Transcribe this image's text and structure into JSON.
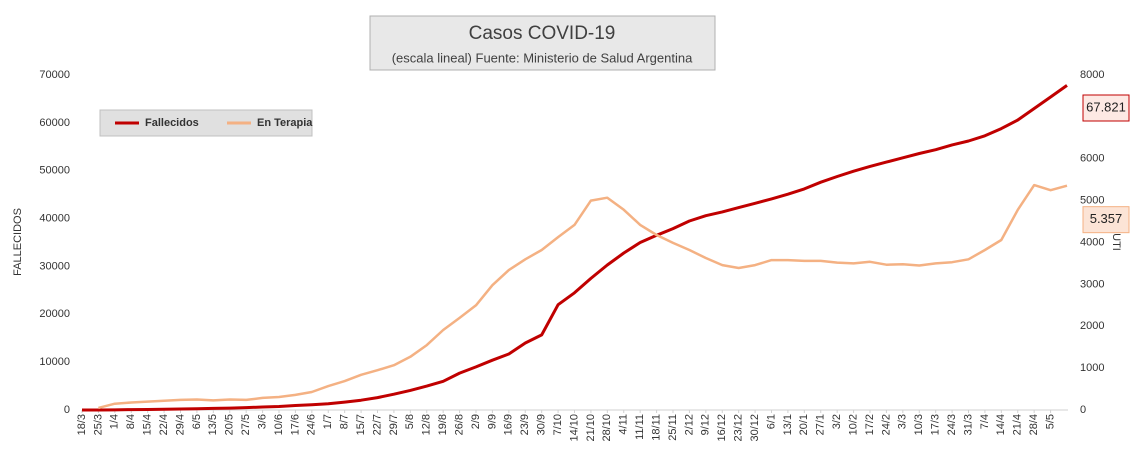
{
  "chart_data": {
    "type": "line",
    "title": "Casos COVID-19",
    "subtitle": "(escala lineal) Fuente: Ministerio de Salud Argentina",
    "y_label": "FALLECIDOS",
    "y2_label": "UTI",
    "legend": "top-left",
    "categories": [
      "18/3",
      "25/3",
      "1/4",
      "8/4",
      "15/4",
      "22/4",
      "29/4",
      "6/5",
      "13/5",
      "20/5",
      "27/5",
      "3/6",
      "10/6",
      "17/6",
      "24/6",
      "1/7",
      "8/7",
      "15/7",
      "22/7",
      "29/7",
      "5/8",
      "12/8",
      "19/8",
      "26/8",
      "2/9",
      "9/9",
      "16/9",
      "23/9",
      "30/9",
      "7/10",
      "14/10",
      "21/10",
      "28/10",
      "4/11",
      "11/11",
      "18/11",
      "25/11",
      "2/12",
      "9/12",
      "16/12",
      "23/12",
      "30/12",
      "6/1",
      "13/1",
      "20/1",
      "27/1",
      "3/2",
      "10/2",
      "17/2",
      "24/2",
      "3/3",
      "10/3",
      "17/3",
      "24/3",
      "31/3",
      "7/4",
      "14/4",
      "21/4",
      "28/4",
      "5/5",
      null
    ],
    "ylim": [
      0,
      70000
    ],
    "yticks": [
      0,
      10000,
      20000,
      30000,
      40000,
      50000,
      60000,
      70000
    ],
    "y2lim": [
      0,
      8000
    ],
    "y2ticks": [
      0,
      1000,
      2000,
      3000,
      4000,
      5000,
      6000,
      8000
    ],
    "series": [
      {
        "name": "Fallecidos",
        "color": "#c00000",
        "axis": "y",
        "values": [
          2,
          10,
          30,
          90,
          110,
          150,
          210,
          270,
          330,
          400,
          500,
          630,
          740,
          930,
          1100,
          1300,
          1650,
          2050,
          2600,
          3300,
          4100,
          5000,
          6000,
          7700,
          9000,
          10400,
          11700,
          14000,
          15700,
          22000,
          24500,
          27500,
          30300,
          32800,
          35000,
          36500,
          37900,
          39500,
          40600,
          41400,
          42300,
          43200,
          44100,
          45100,
          46200,
          47600,
          48800,
          49900,
          50900,
          51800,
          52700,
          53600,
          54400,
          55400,
          56200,
          57300,
          58800,
          60600,
          63000,
          65400,
          67821
        ],
        "value_labels": [
          null,
          null,
          null,
          null,
          null,
          null,
          null,
          null,
          null,
          null,
          null,
          null,
          null,
          null,
          null,
          null,
          null,
          null,
          null,
          null,
          null,
          null,
          null,
          null,
          null,
          null,
          null,
          null,
          null,
          null,
          null,
          null,
          null,
          null,
          null,
          null,
          null,
          null,
          null,
          null,
          null,
          null,
          null,
          null,
          null,
          null,
          null,
          null,
          null,
          null,
          null,
          null,
          null,
          null,
          null,
          null,
          null,
          null,
          null,
          null,
          "67.821"
        ]
      },
      {
        "name": "En Terapia",
        "color": "#f4b183",
        "axis": "y2",
        "values": [
          null,
          50,
          150,
          180,
          200,
          220,
          240,
          250,
          230,
          250,
          240,
          290,
          310,
          360,
          430,
          570,
          690,
          840,
          950,
          1070,
          1270,
          1550,
          1910,
          2200,
          2500,
          2980,
          3340,
          3600,
          3820,
          4130,
          4420,
          5000,
          5070,
          4780,
          4420,
          4180,
          3990,
          3820,
          3630,
          3460,
          3390,
          3460,
          3580,
          3580,
          3560,
          3560,
          3520,
          3500,
          3540,
          3470,
          3480,
          3450,
          3500,
          3530,
          3600,
          3820,
          4060,
          4780,
          5370,
          5250,
          5357
        ],
        "value_labels": [
          null,
          null,
          null,
          null,
          null,
          null,
          null,
          null,
          null,
          null,
          null,
          null,
          null,
          null,
          null,
          null,
          null,
          null,
          null,
          null,
          null,
          null,
          null,
          null,
          null,
          null,
          null,
          null,
          null,
          null,
          null,
          null,
          null,
          null,
          null,
          null,
          null,
          null,
          null,
          null,
          null,
          null,
          null,
          null,
          null,
          null,
          null,
          null,
          null,
          null,
          null,
          null,
          null,
          null,
          null,
          null,
          null,
          null,
          null,
          null,
          "5.357"
        ]
      }
    ]
  }
}
